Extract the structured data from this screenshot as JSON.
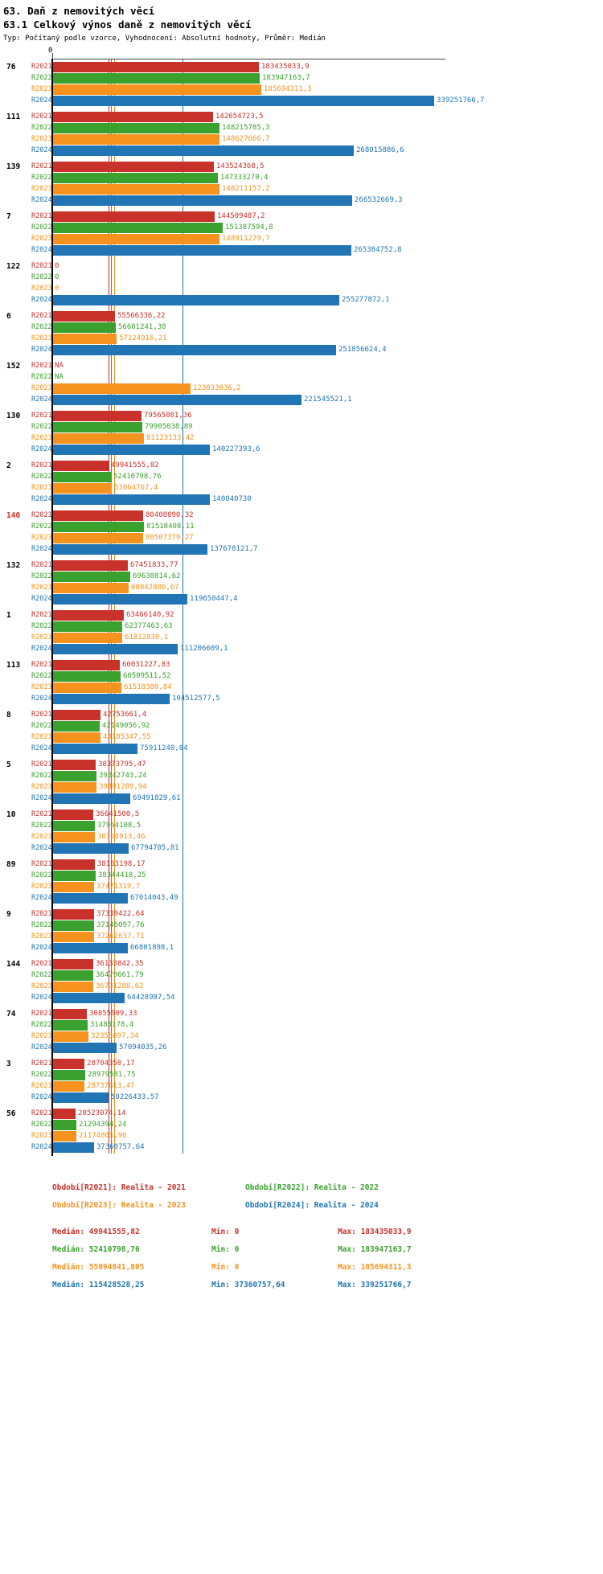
{
  "header": {
    "title": "63. Daň z nemovitých věcí",
    "subtitle": "63.1 Celkový výnos daně z nemovitých věcí",
    "meta": "Typ: Počítaný podle vzorce, Vyhodnocení: Absolutní hodnoty, Průměr: Medián"
  },
  "chart_data": {
    "type": "bar",
    "orientation": "horizontal",
    "axis_zero_label": "0",
    "xlim": [
      0,
      339251766.7
    ],
    "max_value": 339251766.7,
    "grid": false,
    "legend_position": "bottom",
    "series": [
      {
        "name": "R2021",
        "color": "#c9312b",
        "median": 49941555.82
      },
      {
        "name": "R2022",
        "color": "#3ba12e",
        "median": 52410798.76
      },
      {
        "name": "R2023",
        "color": "#f6921e",
        "median": 55094841.805
      },
      {
        "name": "R2024",
        "color": "#2175b4",
        "median": 115428528.25
      }
    ],
    "groups": [
      {
        "id": "76",
        "highlight": false,
        "values": [
          183435033.9,
          183947163.7,
          185694311.3,
          339251766.7
        ],
        "labels": [
          "183435033,9",
          "183947163,7",
          "185694311,3",
          "339251766,7"
        ]
      },
      {
        "id": "111",
        "highlight": false,
        "values": [
          142654723.5,
          148215785.3,
          148627666.7,
          268015886.6
        ],
        "labels": [
          "142654723,5",
          "148215785,3",
          "148627666,7",
          "268015886,6"
        ]
      },
      {
        "id": "139",
        "highlight": false,
        "values": [
          143524368.5,
          147333270.4,
          148211157.2,
          266532669.3
        ],
        "labels": [
          "143524368,5",
          "147333270,4",
          "148211157,2",
          "266532669,3"
        ]
      },
      {
        "id": "7",
        "highlight": false,
        "values": [
          144509487.2,
          151387594.8,
          148911279.7,
          265384752.8
        ],
        "labels": [
          "144509487,2",
          "151387594,8",
          "148911279,7",
          "265384752,8"
        ]
      },
      {
        "id": "122",
        "highlight": false,
        "values": [
          0,
          0,
          0,
          255277872.1
        ],
        "labels": [
          "0",
          "0",
          "0",
          "255277872,1"
        ]
      },
      {
        "id": "6",
        "highlight": false,
        "values": [
          55566336.22,
          56601241.38,
          57124916.21,
          251856624.4
        ],
        "labels": [
          "55566336,22",
          "56601241,38",
          "57124916,21",
          "251856624,4"
        ]
      },
      {
        "id": "152",
        "highlight": false,
        "values": [
          null,
          null,
          123033036.2,
          221545521.1
        ],
        "labels": [
          "NA",
          "NA",
          "123033036,2",
          "221545521,1"
        ]
      },
      {
        "id": "130",
        "highlight": false,
        "values": [
          79565081.36,
          79905038.89,
          81123133.42,
          140227393.6
        ],
        "labels": [
          "79565081,36",
          "79905038,89",
          "81123133,42",
          "140227393,6"
        ]
      },
      {
        "id": "2",
        "highlight": false,
        "values": [
          49941555.82,
          52410798.76,
          53064767.4,
          140040730
        ],
        "labels": [
          "49941555,82",
          "52410798,76",
          "53064767,4",
          "140040730"
        ]
      },
      {
        "id": "140",
        "highlight": true,
        "values": [
          80408890.32,
          81518408.11,
          80507379.27,
          137678121.7
        ],
        "labels": [
          "80408890,32",
          "81518408,11",
          "80507379,27",
          "137678121,7"
        ]
      },
      {
        "id": "132",
        "highlight": false,
        "values": [
          67451833.77,
          69630814.62,
          68042886.67,
          119650447.4
        ],
        "labels": [
          "67451833,77",
          "69630814,62",
          "68042886,67",
          "119650447,4"
        ]
      },
      {
        "id": "1",
        "highlight": false,
        "values": [
          63466140.92,
          62377463.63,
          61812838.1,
          111206609.1
        ],
        "labels": [
          "63466140,92",
          "62377463,63",
          "61812838,1",
          "111206609,1"
        ]
      },
      {
        "id": "113",
        "highlight": false,
        "values": [
          60031227.83,
          60509511.52,
          61518380.84,
          104512577.5
        ],
        "labels": [
          "60031227,83",
          "60509511,52",
          "61518380,84",
          "104512577,5"
        ]
      },
      {
        "id": "8",
        "highlight": false,
        "values": [
          42753661.4,
          42149056.92,
          43185347.55,
          75911240.04
        ],
        "labels": [
          "42753661,4",
          "42149056,92",
          "43185347,55",
          "75911240,04"
        ]
      },
      {
        "id": "5",
        "highlight": false,
        "values": [
          38373795.47,
          39342743.24,
          39491289.94,
          69491829.61
        ],
        "labels": [
          "38373795,47",
          "39342743,24",
          "39491289,94",
          "69491829,61"
        ]
      },
      {
        "id": "10",
        "highlight": false,
        "values": [
          36641500.5,
          37964108.5,
          38124913.46,
          67794705.81
        ],
        "labels": [
          "36641500,5",
          "37964108,5",
          "38124913,46",
          "67794705,81"
        ]
      },
      {
        "id": "89",
        "highlight": false,
        "values": [
          38163198.17,
          38344418.25,
          37471319.7,
          67014043.49
        ],
        "labels": [
          "38163198,17",
          "38344418,25",
          "37471319,7",
          "67014043,49"
        ]
      },
      {
        "id": "9",
        "highlight": false,
        "values": [
          37339422.64,
          37146097.76,
          37262637.71,
          66801898.1
        ],
        "labels": [
          "37339422,64",
          "37146097,76",
          "37262637,71",
          "66801898,1"
        ]
      },
      {
        "id": "144",
        "highlight": false,
        "values": [
          36133842.35,
          36479661.79,
          36731288.62,
          64428987.54
        ],
        "labels": [
          "36133842,35",
          "36479661,79",
          "36731288,62",
          "64428987,54"
        ]
      },
      {
        "id": "74",
        "highlight": false,
        "values": [
          30855909.33,
          31485178.4,
          32358097.34,
          57094035.26
        ],
        "labels": [
          "30855909,33",
          "31485178,4",
          "32358097,34",
          "57094035,26"
        ]
      },
      {
        "id": "3",
        "highlight": false,
        "values": [
          28704350.17,
          28979581.75,
          28737813.47,
          50226433.57
        ],
        "labels": [
          "28704350,17",
          "28979581,75",
          "28737813,47",
          "50226433,57"
        ]
      },
      {
        "id": "56",
        "highlight": false,
        "values": [
          20523074.14,
          21294394.24,
          21174805.96,
          37360757.64
        ],
        "labels": [
          "20523074,14",
          "21294394,24",
          "21174805,96",
          "37360757,64"
        ]
      }
    ]
  },
  "legend": [
    {
      "label": "Období[R2021]: Realita - 2021"
    },
    {
      "label": "Období[R2022]: Realita - 2022"
    },
    {
      "label": "Období[R2023]: Realita - 2023"
    },
    {
      "label": "Období[R2024]: Realita - 2024"
    }
  ],
  "stats": [
    {
      "median": "Medián: 49941555,82",
      "min": "Min: 0",
      "max": "Max: 183435033,9"
    },
    {
      "median": "Medián: 52410798,76",
      "min": "Min: 0",
      "max": "Max: 183947163,7"
    },
    {
      "median": "Medián: 55094841,805",
      "min": "Min: 0",
      "max": "Max: 185694311,3"
    },
    {
      "median": "Medián: 115428528,25",
      "min": "Min: 37360757,64",
      "max": "Max: 339251766,7"
    }
  ]
}
